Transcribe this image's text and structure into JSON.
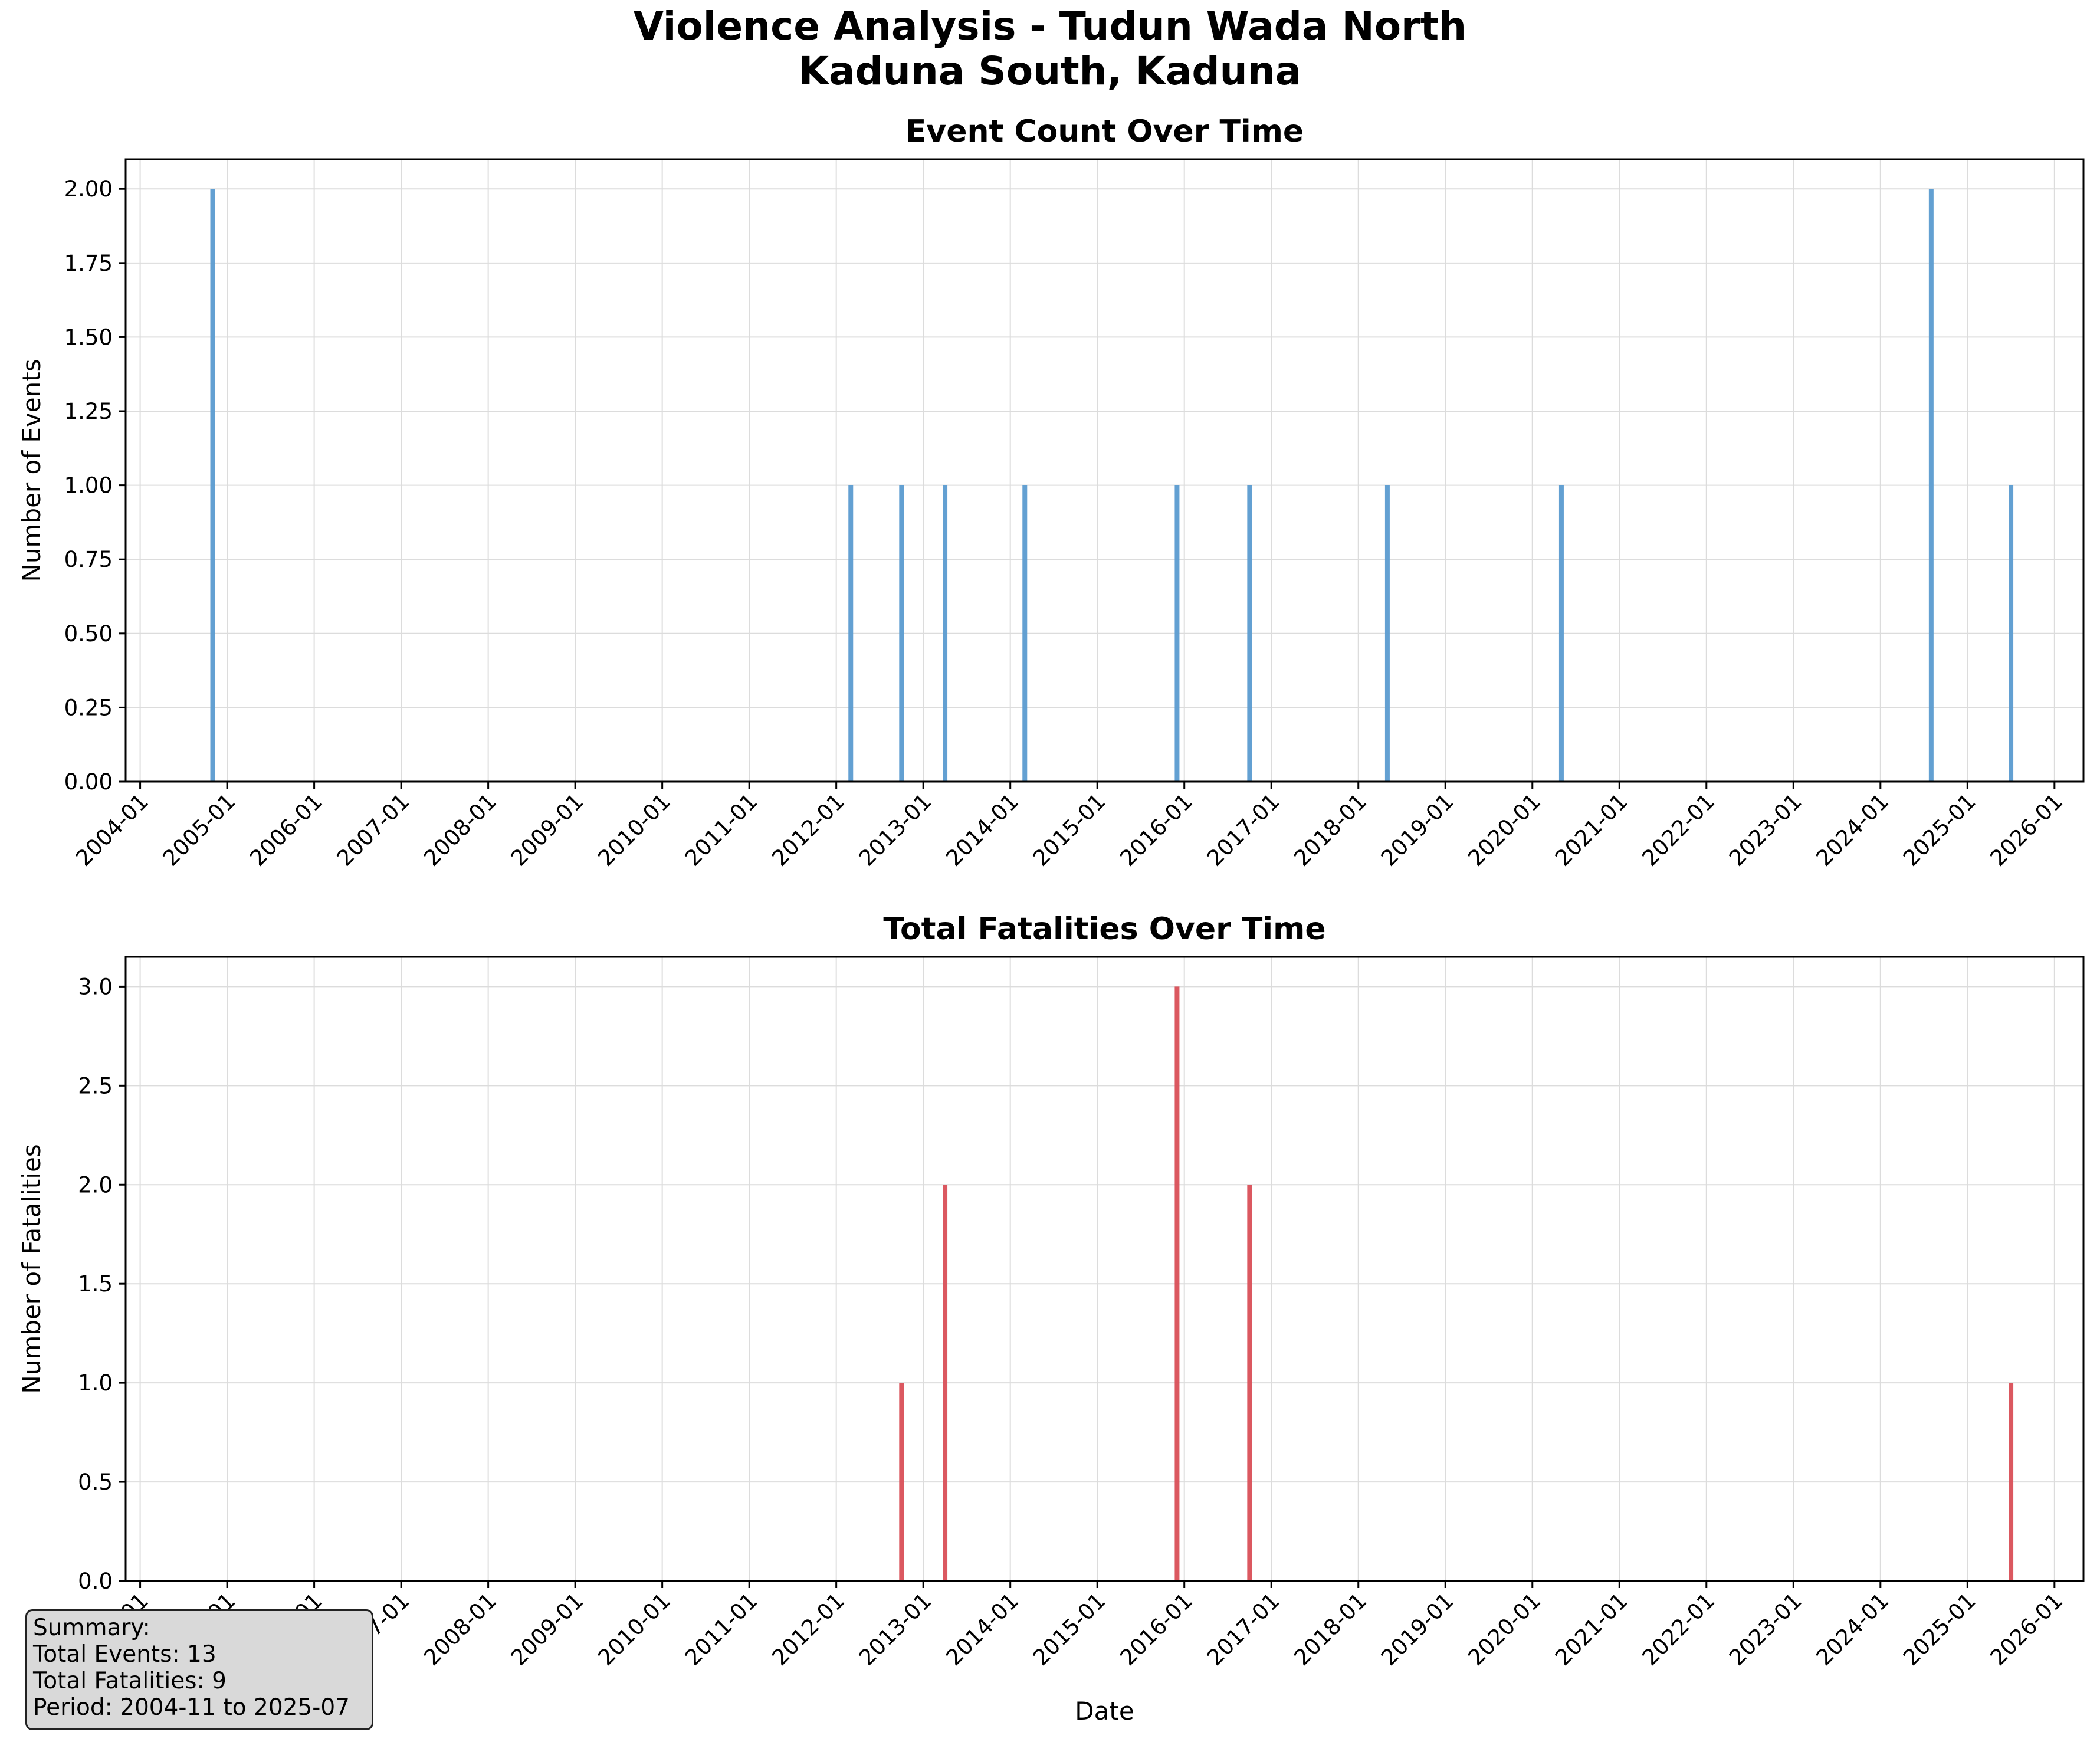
{
  "suptitle": [
    "Violence Analysis - Tudun Wada North",
    "Kaduna South, Kaduna"
  ],
  "chart_data": [
    {
      "type": "bar",
      "title": "Event Count Over Time",
      "xlabel": "",
      "ylabel": "Number of Events",
      "color": "#5b9bd0",
      "ylim": [
        0,
        2.1
      ],
      "yticks": [
        0,
        0.25,
        0.5,
        0.75,
        1.0,
        1.25,
        1.5,
        1.75,
        2.0
      ],
      "ytick_labels": [
        "0.00",
        "0.25",
        "0.50",
        "0.75",
        "1.00",
        "1.25",
        "1.50",
        "1.75",
        "2.00"
      ],
      "xlim": [
        "2003-11",
        "2026-05"
      ],
      "xtick_labels": [
        "2004-01",
        "2005-01",
        "2006-01",
        "2007-01",
        "2008-01",
        "2009-01",
        "2010-01",
        "2011-01",
        "2012-01",
        "2013-01",
        "2014-01",
        "2015-01",
        "2016-01",
        "2017-01",
        "2018-01",
        "2019-01",
        "2020-01",
        "2021-01",
        "2022-01",
        "2023-01",
        "2024-01",
        "2025-01",
        "2026-01"
      ],
      "grid": true,
      "points": [
        {
          "date": "2004-11",
          "value": 2
        },
        {
          "date": "2012-03",
          "value": 1
        },
        {
          "date": "2012-10",
          "value": 1
        },
        {
          "date": "2013-04",
          "value": 1
        },
        {
          "date": "2014-03",
          "value": 1
        },
        {
          "date": "2015-12",
          "value": 1
        },
        {
          "date": "2016-10",
          "value": 1
        },
        {
          "date": "2018-05",
          "value": 1
        },
        {
          "date": "2020-05",
          "value": 1
        },
        {
          "date": "2024-08",
          "value": 2
        },
        {
          "date": "2025-07",
          "value": 1
        }
      ]
    },
    {
      "type": "bar",
      "title": "Total Fatalities Over Time",
      "xlabel": "Date",
      "ylabel": "Number of Fatalities",
      "color": "#d94f57",
      "ylim": [
        0,
        3.15
      ],
      "yticks": [
        0,
        0.5,
        1.0,
        1.5,
        2.0,
        2.5,
        3.0
      ],
      "ytick_labels": [
        "0.0",
        "0.5",
        "1.0",
        "1.5",
        "2.0",
        "2.5",
        "3.0"
      ],
      "xlim": [
        "2003-11",
        "2026-05"
      ],
      "xtick_labels": [
        "2004-01",
        "2005-01",
        "2006-01",
        "2007-01",
        "2008-01",
        "2009-01",
        "2010-01",
        "2011-01",
        "2012-01",
        "2013-01",
        "2014-01",
        "2015-01",
        "2016-01",
        "2017-01",
        "2018-01",
        "2019-01",
        "2020-01",
        "2021-01",
        "2022-01",
        "2023-01",
        "2024-01",
        "2025-01",
        "2026-01"
      ],
      "grid": true,
      "points": [
        {
          "date": "2012-10",
          "value": 1
        },
        {
          "date": "2013-04",
          "value": 2
        },
        {
          "date": "2015-12",
          "value": 3
        },
        {
          "date": "2016-10",
          "value": 2
        },
        {
          "date": "2025-07",
          "value": 1
        }
      ]
    }
  ],
  "summary": {
    "heading": "Summary:",
    "total_events": "Total Events: 13",
    "total_fatalities": "Total Fatalities: 9",
    "period": "Period: 2004-11 to 2025-07"
  }
}
